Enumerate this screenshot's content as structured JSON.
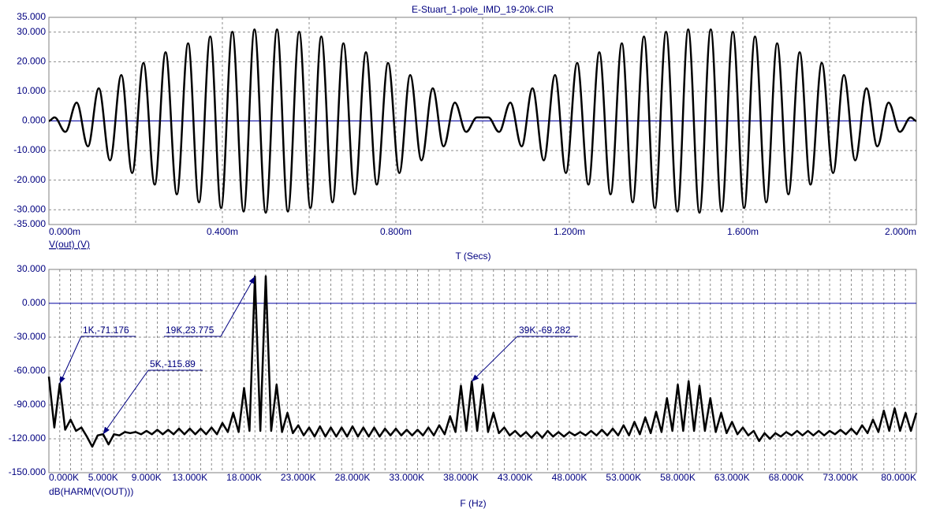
{
  "chart_data": [
    {
      "type": "line",
      "title": "E-Stuart_1-pole_IMD_19-20k.CIR",
      "x_label": "T (Secs)",
      "y_label": "V(out) (V)",
      "color": "#000000",
      "zero_line_color": "#0000a0",
      "grid": true,
      "xlim": [
        0,
        2
      ],
      "ylim": [
        -35,
        35
      ],
      "xticks": [
        {
          "value": 0,
          "label": "0.000m"
        },
        {
          "value": 0.4,
          "label": "0.400m"
        },
        {
          "value": 0.8,
          "label": "0.800m"
        },
        {
          "value": 1.2,
          "label": "1.200m"
        },
        {
          "value": 1.6,
          "label": "1.600m"
        },
        {
          "value": 2,
          "label": "2.000m"
        }
      ],
      "xgrid": [
        0.2,
        0.4,
        0.6,
        0.8,
        1.0,
        1.2,
        1.4,
        1.6,
        1.8
      ],
      "yticks": [
        {
          "value": 35,
          "label": "35.000"
        },
        {
          "value": 30,
          "label": "30.000"
        },
        {
          "value": 20,
          "label": "20.000"
        },
        {
          "value": 10,
          "label": "10.000"
        },
        {
          "value": 0,
          "label": "0.000"
        },
        {
          "value": -10,
          "label": "-10.000"
        },
        {
          "value": -20,
          "label": "-20.000"
        },
        {
          "value": -30,
          "label": "-30.000"
        },
        {
          "value": -35,
          "label": "-35.000"
        }
      ],
      "x": [
        0,
        0.013,
        0.038,
        0.064,
        0.09,
        0.115,
        0.141,
        0.167,
        0.192,
        0.218,
        0.244,
        0.269,
        0.295,
        0.321,
        0.346,
        0.372,
        0.397,
        0.423,
        0.449,
        0.474,
        0.5,
        0.526,
        0.551,
        0.577,
        0.603,
        0.628,
        0.654,
        0.679,
        0.705,
        0.731,
        0.756,
        0.782,
        0.808,
        0.833,
        0.859,
        0.885,
        0.91,
        0.936,
        0.962,
        0.987,
        1.013,
        1.038,
        1.064,
        1.09,
        1.115,
        1.141,
        1.167,
        1.192,
        1.218,
        1.244,
        1.269,
        1.295,
        1.321,
        1.346,
        1.372,
        1.397,
        1.423,
        1.449,
        1.474,
        1.5,
        1.526,
        1.551,
        1.577,
        1.603,
        1.628,
        1.654,
        1.679,
        1.705,
        1.731,
        1.756,
        1.782,
        1.808,
        1.833,
        1.859,
        1.885,
        1.91,
        1.936,
        1.962,
        1.987,
        2
      ],
      "values": [
        0,
        1.2,
        -3.7,
        6.2,
        -8.6,
        11,
        -13.3,
        15.5,
        -17.6,
        19.6,
        -21.5,
        23.2,
        -24.8,
        26.2,
        -27.5,
        28.5,
        -29.4,
        30.1,
        -30.6,
        30.9,
        -31,
        30.9,
        -30.6,
        30.1,
        -29.4,
        28.5,
        -27.5,
        26.2,
        -24.8,
        23.2,
        -21.5,
        19.6,
        -17.6,
        15.5,
        -13.3,
        11,
        -8.6,
        6.2,
        -3.7,
        1.2,
        1.2,
        -3.7,
        6.2,
        -8.6,
        11,
        -13.3,
        15.5,
        -17.6,
        19.6,
        -21.5,
        23.2,
        -24.8,
        26.2,
        -27.5,
        28.5,
        -29.4,
        30.1,
        -30.6,
        30.9,
        -31,
        30.9,
        -30.6,
        30.1,
        -29.4,
        28.5,
        -27.5,
        26.2,
        -24.8,
        23.2,
        -21.5,
        19.6,
        -17.6,
        15.5,
        -13.3,
        11,
        -8.6,
        6.2,
        -3.7,
        1.2,
        0
      ]
    },
    {
      "type": "line",
      "x_label": "F (Hz)",
      "y_label": "dB(HARM(V(OUT)))",
      "color": "#000000",
      "zero_line_color": "#0000a0",
      "grid": true,
      "xlim": [
        0,
        80
      ],
      "ylim": [
        -150,
        30
      ],
      "xticks": [
        {
          "value": 0,
          "label": "0.000K"
        },
        {
          "value": 5,
          "label": "5.000K"
        },
        {
          "value": 9,
          "label": "9.000K"
        },
        {
          "value": 13,
          "label": "13.000K"
        },
        {
          "value": 18,
          "label": "18.000K"
        },
        {
          "value": 23,
          "label": "23.000K"
        },
        {
          "value": 28,
          "label": "28.000K"
        },
        {
          "value": 33,
          "label": "33.000K"
        },
        {
          "value": 38,
          "label": "38.000K"
        },
        {
          "value": 43,
          "label": "43.000K"
        },
        {
          "value": 48,
          "label": "48.000K"
        },
        {
          "value": 53,
          "label": "53.000K"
        },
        {
          "value": 58,
          "label": "58.000K"
        },
        {
          "value": 63,
          "label": "63.000K"
        },
        {
          "value": 68,
          "label": "68.000K"
        },
        {
          "value": 73,
          "label": "73.000K"
        },
        {
          "value": 80,
          "label": "80.000K"
        }
      ],
      "xgrid": [
        1,
        2,
        3,
        4,
        5,
        6,
        7,
        8,
        9,
        10,
        11,
        12,
        13,
        14,
        15,
        16,
        17,
        18,
        19,
        20,
        21,
        22,
        23,
        24,
        25,
        26,
        27,
        28,
        29,
        30,
        31,
        32,
        33,
        34,
        35,
        36,
        37,
        38,
        39,
        40,
        41,
        42,
        43,
        44,
        45,
        46,
        47,
        48,
        49,
        50,
        51,
        52,
        53,
        54,
        55,
        56,
        57,
        58,
        59,
        60,
        61,
        62,
        63,
        64,
        65,
        66,
        67,
        68,
        69,
        70,
        71,
        72,
        73,
        74,
        75,
        76,
        77,
        78,
        79
      ],
      "yticks": [
        {
          "value": 30,
          "label": "30.000"
        },
        {
          "value": 0,
          "label": "0.000"
        },
        {
          "value": -30,
          "label": "-30.000"
        },
        {
          "value": -60,
          "label": "-60.000"
        },
        {
          "value": -90,
          "label": "-90.000"
        },
        {
          "value": -120,
          "label": "-120.000"
        },
        {
          "value": -150,
          "label": "-150.000"
        }
      ],
      "x": [
        0,
        0.5,
        1,
        1.5,
        2,
        2.5,
        3,
        3.5,
        4,
        4.5,
        5,
        5.5,
        6,
        6.5,
        7,
        7.5,
        8,
        8.5,
        9,
        9.5,
        10,
        10.5,
        11,
        11.5,
        12,
        12.5,
        13,
        13.5,
        14,
        14.5,
        15,
        15.5,
        16,
        16.5,
        17,
        17.5,
        18,
        18.5,
        19,
        19.5,
        20,
        20.5,
        21,
        21.5,
        22,
        22.5,
        23,
        23.5,
        24,
        24.5,
        25,
        25.5,
        26,
        26.5,
        27,
        27.5,
        28,
        28.5,
        29,
        29.5,
        30,
        30.5,
        31,
        31.5,
        32,
        32.5,
        33,
        33.5,
        34,
        34.5,
        35,
        35.5,
        36,
        36.5,
        37,
        37.5,
        38,
        38.5,
        39,
        39.5,
        40,
        40.5,
        41,
        41.5,
        42,
        42.5,
        43,
        43.5,
        44,
        44.5,
        45,
        45.5,
        46,
        46.5,
        47,
        47.5,
        48,
        48.5,
        49,
        49.5,
        50,
        50.5,
        51,
        51.5,
        52,
        52.5,
        53,
        53.5,
        54,
        54.5,
        55,
        55.5,
        56,
        56.5,
        57,
        57.5,
        58,
        58.5,
        59,
        59.5,
        60,
        60.5,
        61,
        61.5,
        62,
        62.5,
        63,
        63.5,
        64,
        64.5,
        65,
        65.5,
        66,
        66.5,
        67,
        67.5,
        68,
        68.5,
        69,
        69.5,
        70,
        70.5,
        71,
        71.5,
        72,
        72.5,
        73,
        73.5,
        74,
        74.5,
        75,
        75.5,
        76,
        76.5,
        77,
        77.5,
        78,
        78.5,
        79,
        79.5,
        80
      ],
      "values": [
        -65,
        -110,
        -71.176,
        -112,
        -103,
        -113,
        -110,
        -118,
        -127,
        -117,
        -115.89,
        -125,
        -116,
        -117,
        -114,
        -115,
        -114,
        -116,
        -113,
        -116,
        -112,
        -116,
        -112,
        -116,
        -111,
        -116,
        -111,
        -116,
        -111,
        -116,
        -110,
        -116,
        -106,
        -114,
        -97,
        -114,
        -75,
        -113,
        23.775,
        -113,
        24,
        -113,
        -72,
        -114,
        -97,
        -115,
        -108,
        -117,
        -110,
        -118,
        -109,
        -118,
        -110,
        -118,
        -110,
        -118,
        -109,
        -118,
        -110,
        -118,
        -110,
        -118,
        -111,
        -117,
        -111,
        -117,
        -112,
        -117,
        -112,
        -117,
        -110,
        -117,
        -108,
        -116,
        -100,
        -114,
        -73,
        -113,
        -69.282,
        -113,
        -72,
        -114,
        -97,
        -115,
        -110,
        -117,
        -113,
        -118,
        -114,
        -119,
        -114,
        -119,
        -113,
        -118,
        -114,
        -118,
        -114,
        -117,
        -114,
        -117,
        -113,
        -117,
        -112,
        -117,
        -111,
        -117,
        -108,
        -117,
        -105,
        -116,
        -101,
        -115,
        -96,
        -114,
        -84,
        -113,
        -72,
        -113,
        -69,
        -113,
        -73,
        -113,
        -84,
        -114,
        -97,
        -115,
        -105,
        -116,
        -110,
        -117,
        -113,
        -122,
        -115,
        -120,
        -115,
        -118,
        -114,
        -117,
        -113,
        -117,
        -113,
        -117,
        -113,
        -117,
        -113,
        -116,
        -112,
        -116,
        -111,
        -116,
        -108,
        -115,
        -103,
        -114,
        -95,
        -113,
        -93,
        -113,
        -97,
        -113,
        -97
      ],
      "annotations": [
        {
          "text": "1K,-71.176",
          "x": 1,
          "y": -71.176
        },
        {
          "text": "5K,-115.89",
          "x": 5,
          "y": -115.89
        },
        {
          "text": "19K,23.775",
          "x": 19,
          "y": 23.775
        },
        {
          "text": "39K,-69.282",
          "x": 39,
          "y": -69.282
        }
      ]
    }
  ]
}
